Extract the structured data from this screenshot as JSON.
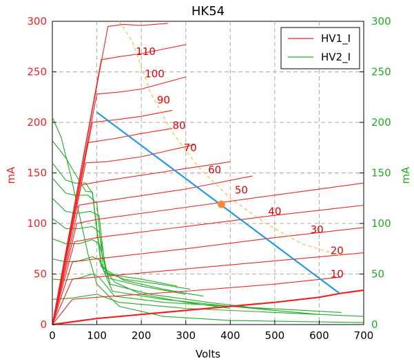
{
  "chart_data": {
    "type": "line",
    "title": "HK54",
    "xlabel": "Volts",
    "ylabel_left": "mA",
    "ylabel_right": "mA",
    "xlim": [
      0,
      700
    ],
    "ylim": [
      0,
      300
    ],
    "x_ticks": [
      "0",
      "100",
      "200",
      "300",
      "400",
      "500",
      "600",
      "700"
    ],
    "y_ticks_left": [
      "0",
      "50",
      "100",
      "150",
      "200",
      "250",
      "300"
    ],
    "y_ticks_right": [
      "0",
      "50",
      "100",
      "150",
      "200",
      "250",
      "300"
    ],
    "grid": true,
    "legend_position": "top-right",
    "colors": {
      "hv1": "#ee2222",
      "hv2": "#22aa22",
      "load_line": "#2299dd",
      "power_curve": "#ffbb44",
      "operating_point": "#ff8833"
    },
    "legend": [
      {
        "label": "HV1_I",
        "color": "#ee2222"
      },
      {
        "label": "HV2_I",
        "color": "#22aa22"
      }
    ],
    "hv1_curve_labels": [
      "110",
      "100",
      "90",
      "80",
      "70",
      "60",
      "50",
      "40",
      "30",
      "20",
      "10"
    ],
    "hv1_curve_label_points": [
      [
        210,
        270
      ],
      [
        230,
        248
      ],
      [
        250,
        222
      ],
      [
        285,
        197
      ],
      [
        310,
        175
      ],
      [
        365,
        153
      ],
      [
        425,
        133
      ],
      [
        500,
        112
      ],
      [
        595,
        94
      ],
      [
        640,
        73
      ],
      [
        640,
        50
      ]
    ],
    "hv1_curves": [
      [
        [
          0,
          0
        ],
        [
          50,
          3
        ],
        [
          100,
          6
        ],
        [
          200,
          10
        ],
        [
          300,
          14
        ],
        [
          400,
          18
        ],
        [
          500,
          22
        ],
        [
          600,
          27
        ],
        [
          650,
          31
        ],
        [
          700,
          34
        ]
      ],
      [
        [
          0,
          0
        ],
        [
          45,
          25
        ],
        [
          100,
          27
        ],
        [
          300,
          33
        ],
        [
          500,
          40
        ],
        [
          650,
          47
        ]
      ],
      [
        [
          0,
          0
        ],
        [
          45,
          45
        ],
        [
          100,
          47
        ],
        [
          300,
          55
        ],
        [
          500,
          63
        ],
        [
          700,
          71
        ]
      ],
      [
        [
          0,
          0
        ],
        [
          45,
          62
        ],
        [
          100,
          65
        ],
        [
          300,
          75
        ],
        [
          500,
          86
        ],
        [
          700,
          96
        ]
      ],
      [
        [
          0,
          0
        ],
        [
          50,
          82
        ],
        [
          100,
          86
        ],
        [
          300,
          97
        ],
        [
          500,
          108
        ],
        [
          700,
          118
        ]
      ],
      [
        [
          0,
          0
        ],
        [
          55,
          100
        ],
        [
          100,
          104
        ],
        [
          300,
          116
        ],
        [
          500,
          128
        ],
        [
          700,
          140
        ]
      ],
      [
        [
          0,
          0
        ],
        [
          60,
          118
        ],
        [
          100,
          121
        ],
        [
          300,
          134
        ],
        [
          450,
          147
        ]
      ],
      [
        [
          0,
          0
        ],
        [
          65,
          138
        ],
        [
          100,
          141
        ],
        [
          250,
          151
        ],
        [
          400,
          161
        ]
      ],
      [
        [
          0,
          0
        ],
        [
          75,
          160
        ],
        [
          120,
          161
        ],
        [
          200,
          166
        ],
        [
          320,
          178
        ]
      ],
      [
        [
          0,
          0
        ],
        [
          80,
          180
        ],
        [
          140,
          184
        ],
        [
          200,
          189
        ],
        [
          270,
          194
        ]
      ],
      [
        [
          0,
          0
        ],
        [
          90,
          200
        ],
        [
          150,
          203
        ],
        [
          200,
          206
        ],
        [
          270,
          212
        ]
      ],
      [
        [
          0,
          0
        ],
        [
          100,
          228
        ],
        [
          150,
          230
        ],
        [
          200,
          233
        ],
        [
          300,
          245
        ]
      ],
      [
        [
          0,
          0
        ],
        [
          110,
          262
        ],
        [
          150,
          265
        ],
        [
          200,
          268
        ],
        [
          300,
          277
        ]
      ],
      [
        [
          0,
          0
        ],
        [
          125,
          295
        ],
        [
          160,
          297
        ],
        [
          200,
          296
        ],
        [
          260,
          298
        ]
      ]
    ],
    "hv2_curves": [
      [
        [
          0,
          205
        ],
        [
          20,
          185
        ],
        [
          40,
          150
        ],
        [
          60,
          110
        ],
        [
          80,
          70
        ],
        [
          100,
          40
        ],
        [
          150,
          18
        ],
        [
          250,
          8
        ],
        [
          400,
          4
        ],
        [
          700,
          2
        ]
      ],
      [
        [
          0,
          182
        ],
        [
          30,
          165
        ],
        [
          50,
          150
        ],
        [
          75,
          132
        ],
        [
          90,
          131
        ],
        [
          110,
          60
        ],
        [
          140,
          42
        ],
        [
          200,
          30
        ],
        [
          300,
          22
        ],
        [
          400,
          16
        ]
      ],
      [
        [
          0,
          160
        ],
        [
          30,
          143
        ],
        [
          50,
          140
        ],
        [
          75,
          140
        ],
        [
          90,
          130
        ],
        [
          110,
          57
        ],
        [
          160,
          44
        ],
        [
          250,
          35
        ],
        [
          340,
          28
        ]
      ],
      [
        [
          0,
          145
        ],
        [
          30,
          130
        ],
        [
          50,
          128
        ],
        [
          80,
          128
        ],
        [
          100,
          120
        ],
        [
          115,
          53
        ],
        [
          160,
          45
        ],
        [
          240,
          40
        ],
        [
          310,
          35
        ]
      ],
      [
        [
          0,
          125
        ],
        [
          30,
          112
        ],
        [
          55,
          110
        ],
        [
          85,
          112
        ],
        [
          105,
          108
        ],
        [
          120,
          50
        ],
        [
          200,
          45
        ],
        [
          280,
          38
        ]
      ],
      [
        [
          0,
          105
        ],
        [
          30,
          95
        ],
        [
          60,
          95
        ],
        [
          90,
          97
        ],
        [
          105,
          92
        ],
        [
          125,
          46
        ],
        [
          200,
          38
        ],
        [
          300,
          30
        ]
      ],
      [
        [
          0,
          85
        ],
        [
          30,
          80
        ],
        [
          60,
          80
        ],
        [
          90,
          84
        ],
        [
          105,
          80
        ],
        [
          130,
          40
        ],
        [
          220,
          30
        ],
        [
          350,
          22
        ],
        [
          500,
          14
        ]
      ],
      [
        [
          0,
          65
        ],
        [
          30,
          62
        ],
        [
          60,
          63
        ],
        [
          90,
          67
        ],
        [
          105,
          64
        ],
        [
          135,
          33
        ],
        [
          250,
          25
        ],
        [
          400,
          18
        ],
        [
          600,
          10
        ]
      ],
      [
        [
          0,
          45
        ],
        [
          30,
          44
        ],
        [
          60,
          46
        ],
        [
          90,
          50
        ],
        [
          105,
          47
        ],
        [
          140,
          28
        ],
        [
          250,
          22
        ],
        [
          400,
          18
        ],
        [
          650,
          12
        ]
      ],
      [
        [
          0,
          25
        ],
        [
          40,
          26
        ],
        [
          70,
          28
        ],
        [
          100,
          30
        ],
        [
          150,
          22
        ],
        [
          300,
          16
        ],
        [
          500,
          12
        ],
        [
          700,
          8
        ]
      ]
    ],
    "load_line": [
      [
        100,
        210
      ],
      [
        645,
        31
      ]
    ],
    "operating_point": [
      380,
      119
    ],
    "power_curve": [
      [
        150,
        300
      ],
      [
        180,
        280
      ],
      [
        220,
        230
      ],
      [
        270,
        190
      ],
      [
        330,
        155
      ],
      [
        400,
        125
      ],
      [
        480,
        100
      ],
      [
        560,
        80
      ],
      [
        650,
        68
      ]
    ]
  }
}
